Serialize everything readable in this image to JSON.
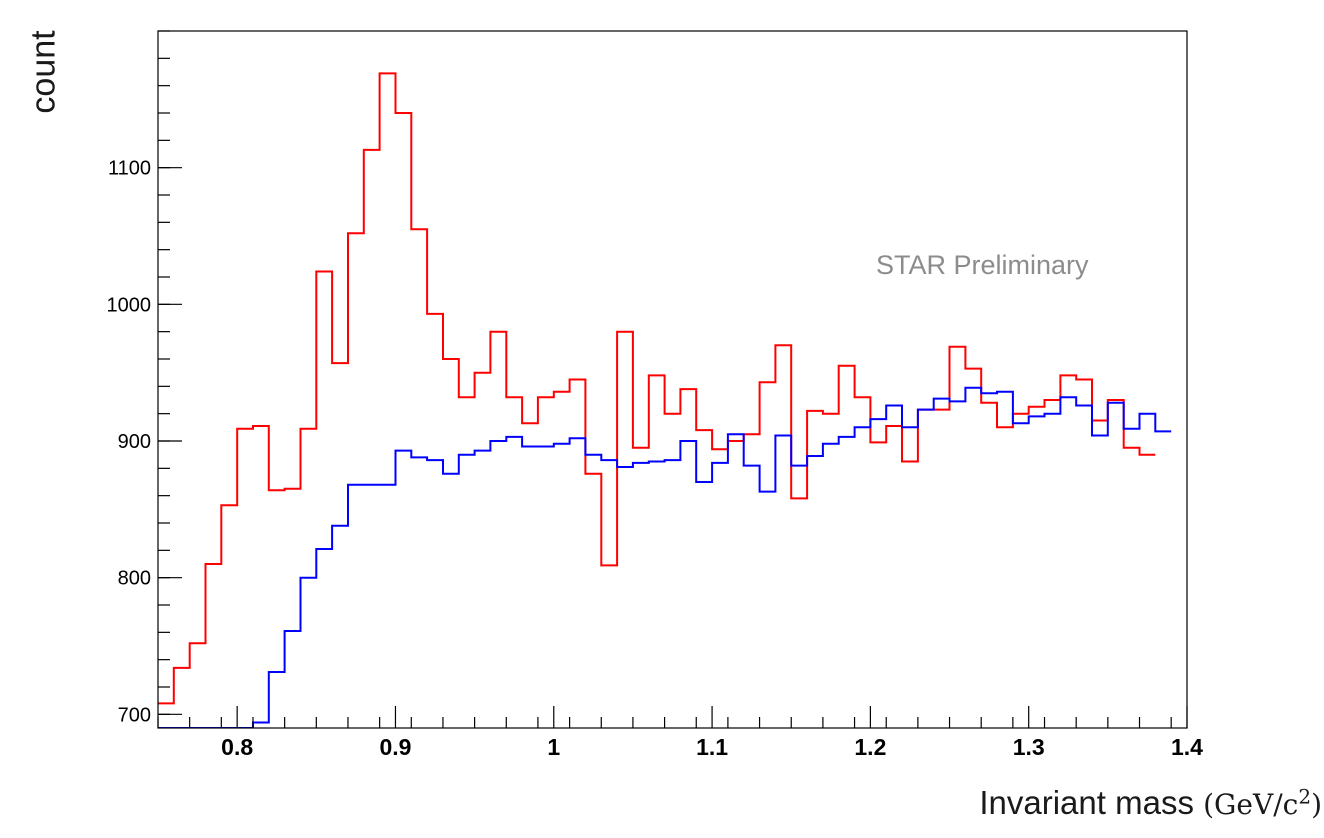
{
  "chart_data": {
    "type": "line",
    "style": "step-histogram",
    "ylabel": "count",
    "xlabel": "Invariant mass",
    "xlabel_unit": "(GeV/c",
    "xlabel_unit_exp": "2",
    "xlabel_unit_close": ")",
    "annotation": "STAR Preliminary",
    "xlim": [
      0.75,
      1.4
    ],
    "ylim": [
      690,
      1200
    ],
    "bin_width": 0.01,
    "x_ticks": [
      0.8,
      0.9,
      1.0,
      1.1,
      1.2,
      1.3,
      1.4
    ],
    "x_tick_labels": [
      "0.8",
      "0.9",
      "1",
      "1.1",
      "1.2",
      "1.3",
      "1.4"
    ],
    "y_ticks": [
      700,
      800,
      900,
      1000,
      1100
    ],
    "y_tick_labels": [
      "700",
      "800",
      "900",
      "1000",
      "1100"
    ],
    "grid": false,
    "series": [
      {
        "color": "#ff0000",
        "values": [
          708,
          734,
          752,
          810,
          853,
          909,
          911,
          864,
          865,
          909,
          1024,
          957,
          1052,
          1113,
          1169,
          1140,
          1055,
          993,
          960,
          932,
          950,
          980,
          932,
          913,
          932,
          936,
          945,
          876,
          809,
          980,
          895,
          948,
          920,
          938,
          908,
          894,
          900,
          905,
          943,
          970,
          858,
          922,
          920,
          955,
          932,
          899,
          911,
          885,
          923,
          923,
          969,
          953,
          928,
          910,
          920,
          925,
          930,
          948,
          945,
          915,
          930,
          895,
          890
        ]
      },
      {
        "color": "#0000ff",
        "values": [
          684,
          684,
          684,
          684,
          684,
          684,
          694,
          731,
          761,
          800,
          821,
          838,
          868,
          868,
          868,
          893,
          888,
          886,
          876,
          890,
          893,
          900,
          903,
          896,
          896,
          898,
          902,
          890,
          886,
          881,
          884,
          885,
          886,
          900,
          870,
          884,
          905,
          882,
          863,
          904,
          882,
          889,
          898,
          903,
          910,
          916,
          926,
          910,
          923,
          931,
          929,
          939,
          935,
          936,
          913,
          918,
          920,
          932,
          926,
          904,
          928,
          909,
          920,
          907
        ]
      }
    ]
  }
}
